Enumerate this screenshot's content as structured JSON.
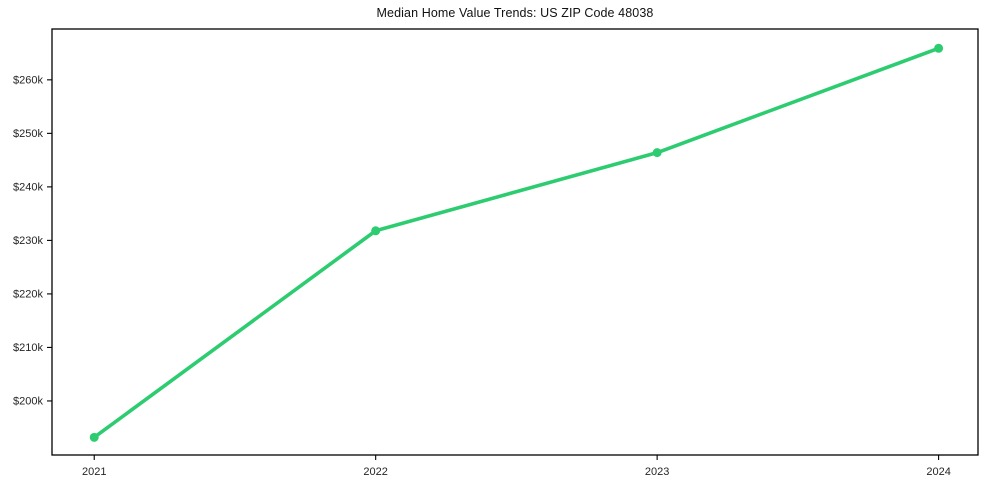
{
  "colors": {
    "line": "#2ecc71",
    "marker": "#2ecc71",
    "axis": "#000000",
    "tick_text": "#262626",
    "title_text": "#111111",
    "background": "#ffffff"
  },
  "chart_data": {
    "type": "line",
    "title": "Median Home Value Trends: US ZIP Code 48038",
    "xlabel": "",
    "ylabel": "",
    "x": [
      2021,
      2022,
      2023,
      2024
    ],
    "x_tick_labels": [
      "2021",
      "2022",
      "2023",
      "2024"
    ],
    "series": [
      {
        "name": "Median Home Value",
        "values": [
          193200,
          231800,
          246400,
          265900
        ]
      }
    ],
    "y_ticks": [
      200000,
      210000,
      220000,
      230000,
      240000,
      250000,
      260000
    ],
    "y_tick_labels": [
      "$200k",
      "$210k",
      "$220k",
      "$230k",
      "$240k",
      "$250k",
      "$260k"
    ],
    "xlim": [
      2020.85,
      2024.14
    ],
    "ylim": [
      189900,
      269500
    ],
    "grid": false,
    "legend": null,
    "marker": "circle"
  }
}
